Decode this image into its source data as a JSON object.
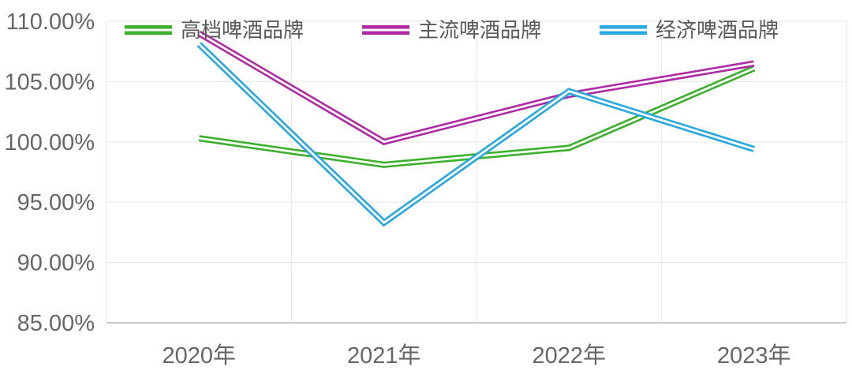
{
  "chart_data": {
    "type": "line",
    "title": "",
    "categories": [
      "2020年",
      "2021年",
      "2022年",
      "2023年"
    ],
    "series": [
      {
        "key": "premium",
        "name": "高档啤酒品牌",
        "color": "#3CB02C",
        "values": [
          100.3,
          98.1,
          99.5,
          106.1
        ]
      },
      {
        "key": "mainstream",
        "name": "主流啤酒品牌",
        "color": "#B02AA5",
        "values": [
          109.0,
          100.0,
          103.9,
          106.5
        ]
      },
      {
        "key": "economy",
        "name": "经济啤酒品牌",
        "color": "#28A8E0",
        "values": [
          108.1,
          93.3,
          104.2,
          99.4
        ]
      }
    ],
    "ylim": [
      85,
      110
    ],
    "ytick_step": 5,
    "ytick_labels": [
      "110.00%",
      "105.00%",
      "100.00%",
      "95.00%",
      "90.00%",
      "85.00%"
    ],
    "grid": true,
    "vertical_gridlines": true,
    "legend_position": "top",
    "line_style": "double-stripe",
    "axis_text_color": "#666666",
    "gridline_color": "#E9E9E9",
    "axis_line_color": "#BFBFBF",
    "background_color": "#FFFFFF"
  }
}
